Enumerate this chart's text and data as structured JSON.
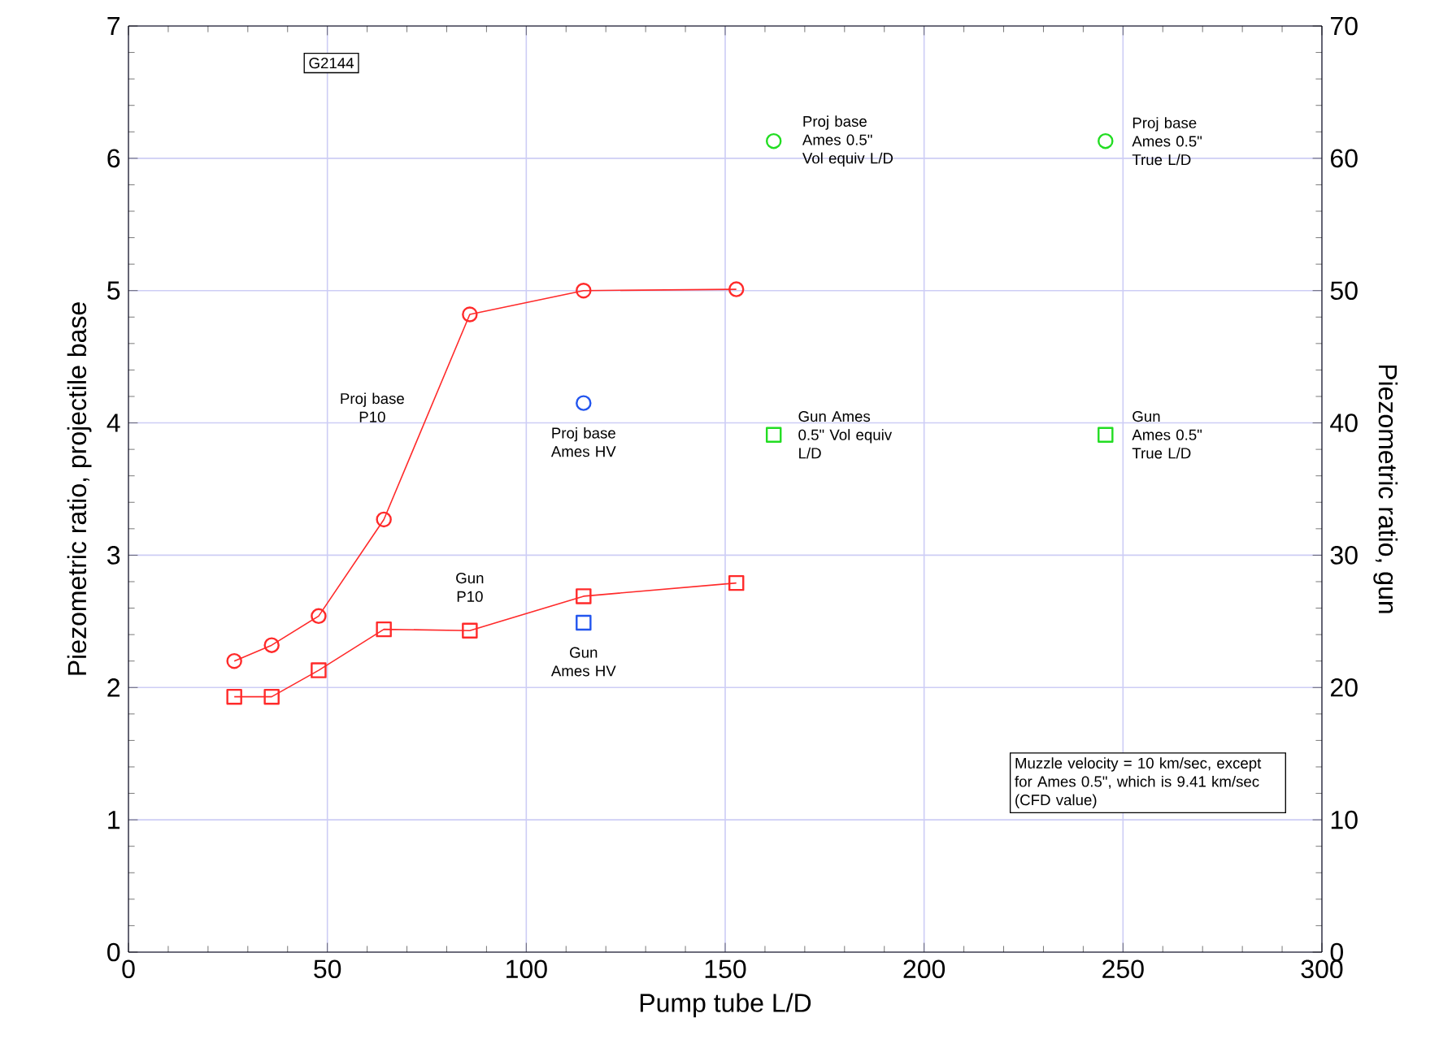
{
  "chart_data": {
    "type": "line",
    "xlabel": "Pump tube L/D",
    "ylabel": "Piezometric ratio, projectile base",
    "y2label": "Piezometric ratio, gun",
    "xlim": [
      0,
      300
    ],
    "xticks": [
      0,
      50,
      100,
      150,
      200,
      250,
      300
    ],
    "ylim": [
      0,
      7
    ],
    "yticks": [
      0,
      1,
      2,
      3,
      4,
      5,
      6,
      7
    ],
    "y2lim": [
      0,
      70
    ],
    "y2ticks": [
      0,
      10,
      20,
      30,
      40,
      50,
      60,
      70
    ],
    "grid": true,
    "series": [
      {
        "name": "Proj base P10",
        "marker": "circle",
        "color": "#ff2a2a",
        "x": [
          26.6,
          36,
          47.8,
          64.2,
          85.8,
          114.4,
          152.8
        ],
        "values": [
          2.2,
          2.32,
          2.54,
          3.27,
          4.82,
          5.0,
          5.01
        ]
      },
      {
        "name": "Gun P10",
        "marker": "square",
        "axis": "y2",
        "color": "#ff2a2a",
        "x": [
          26.6,
          36,
          47.8,
          64.2,
          85.8,
          114.4,
          152.8
        ],
        "values": [
          19.3,
          19.3,
          21.3,
          24.4,
          24.3,
          26.9,
          27.9
        ]
      },
      {
        "name": "Proj base Ames HV",
        "type": "scatter",
        "marker": "circle",
        "color": "#2255ee",
        "x": [
          114.4
        ],
        "values": [
          4.15
        ]
      },
      {
        "name": "Gun Ames HV",
        "type": "scatter",
        "marker": "square",
        "axis": "y2",
        "color": "#2255ee",
        "x": [
          114.4
        ],
        "values": [
          24.9
        ]
      },
      {
        "name": "Proj base Ames 0.5\" Vol equiv L/D",
        "type": "scatter",
        "marker": "circle",
        "color": "#22dd22",
        "x": [
          162.2
        ],
        "values": [
          6.13
        ]
      },
      {
        "name": "Proj base Ames 0.5\" True L/D",
        "type": "scatter",
        "marker": "circle",
        "color": "#22dd22",
        "x": [
          245.6
        ],
        "values": [
          6.13
        ]
      },
      {
        "name": "Gun Ames 0.5\" Vol equiv L/D",
        "type": "scatter",
        "marker": "square",
        "axis": "y2",
        "color": "#22dd22",
        "x": [
          162.2
        ],
        "values": [
          39.1
        ]
      },
      {
        "name": "Gun Ames 0.5\" True L/D",
        "type": "scatter",
        "marker": "square",
        "axis": "y2",
        "color": "#22dd22",
        "x": [
          245.6
        ],
        "values": [
          39.1
        ]
      }
    ],
    "annotations": [
      "G2144",
      "Muzzle velocity = 10 km/sec, except for Ames 0.5\", which is 9.41 km/sec (CFD value)"
    ]
  }
}
